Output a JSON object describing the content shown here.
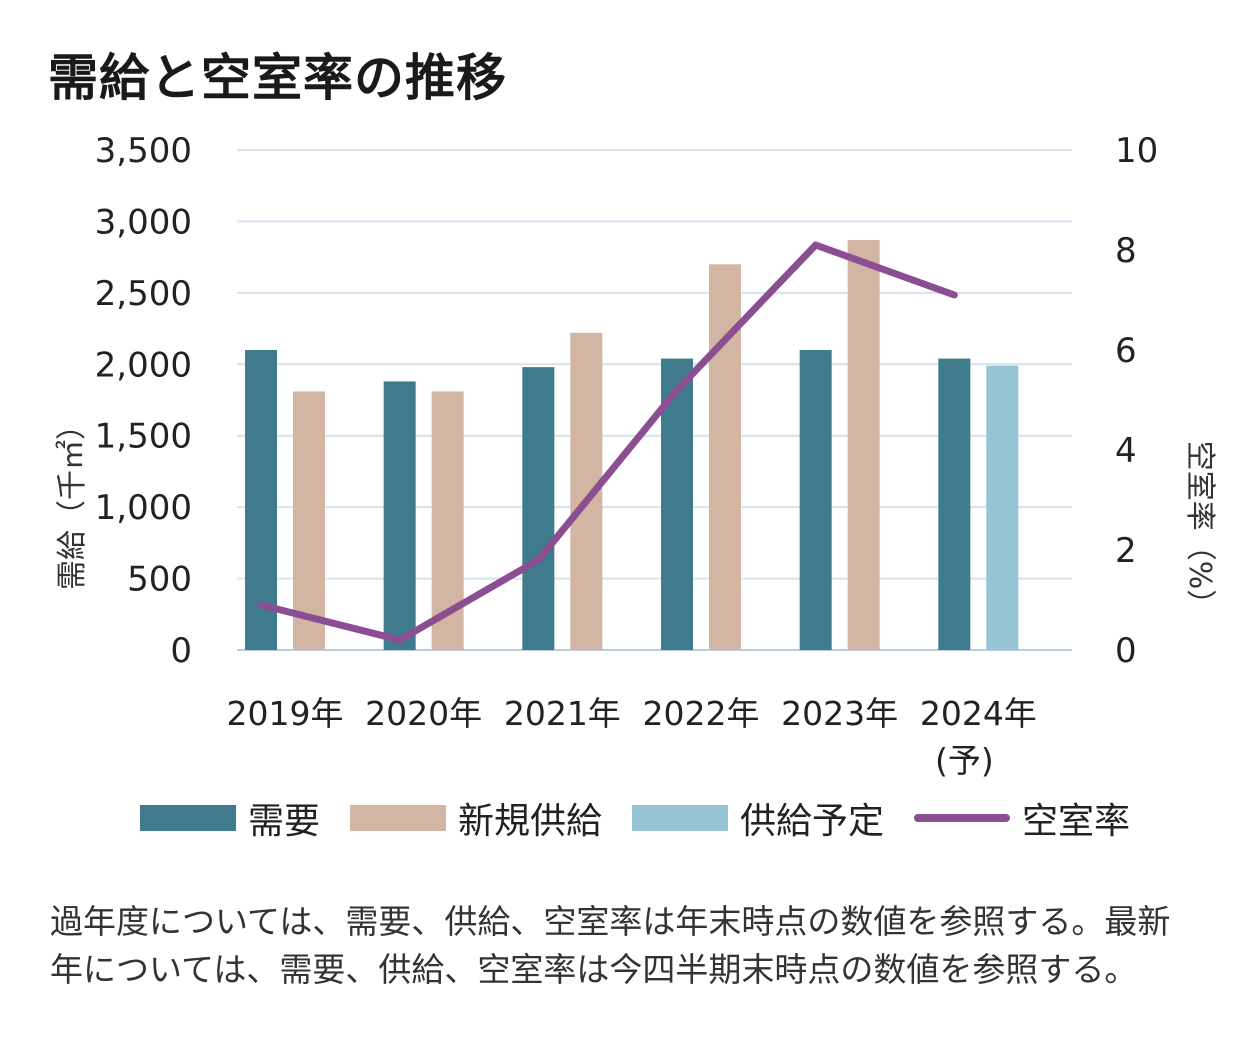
{
  "title": "需給と空室率の推移",
  "note": "過年度については、需要、供給、空室率は年末時点の数値を参照する。最新年については、需要、供給、空室率は今四半期末時点の数値を参照する。",
  "chart_data": {
    "type": "bar",
    "categories": [
      "2019年",
      "2020年",
      "2021年",
      "2022年",
      "2023年",
      "2024年"
    ],
    "category_sub": [
      "",
      "",
      "",
      "",
      "",
      "(予)"
    ],
    "ylabel": "需給（千㎡）",
    "y2label": "空室率（%）",
    "ylim": [
      0,
      3500
    ],
    "y2lim": [
      0,
      10
    ],
    "yticks": [
      "0",
      "500",
      "1,000",
      "1,500",
      "2,000",
      "2,500",
      "3,000",
      "3,500"
    ],
    "y2ticks": [
      "0",
      "2",
      "4",
      "6",
      "8",
      "10"
    ],
    "grid": true,
    "legend_position": "bottom",
    "series": [
      {
        "name": "需要",
        "kind": "bar",
        "color": "#3f7a8d",
        "values": [
          2100,
          1880,
          1980,
          2040,
          2100,
          2040
        ]
      },
      {
        "name": "新規供給",
        "kind": "bar",
        "color": "#d2b6a3",
        "values": [
          1810,
          1810,
          2220,
          2700,
          2870,
          null
        ]
      },
      {
        "name": "供給予定",
        "kind": "bar",
        "color": "#98c5d6",
        "values": [
          null,
          null,
          null,
          null,
          null,
          1990
        ]
      },
      {
        "name": "空室率",
        "kind": "line",
        "axis": "right",
        "color": "#8b4e92",
        "values": [
          0.9,
          0.2,
          1.8,
          5.2,
          8.1,
          7.1
        ]
      }
    ]
  }
}
